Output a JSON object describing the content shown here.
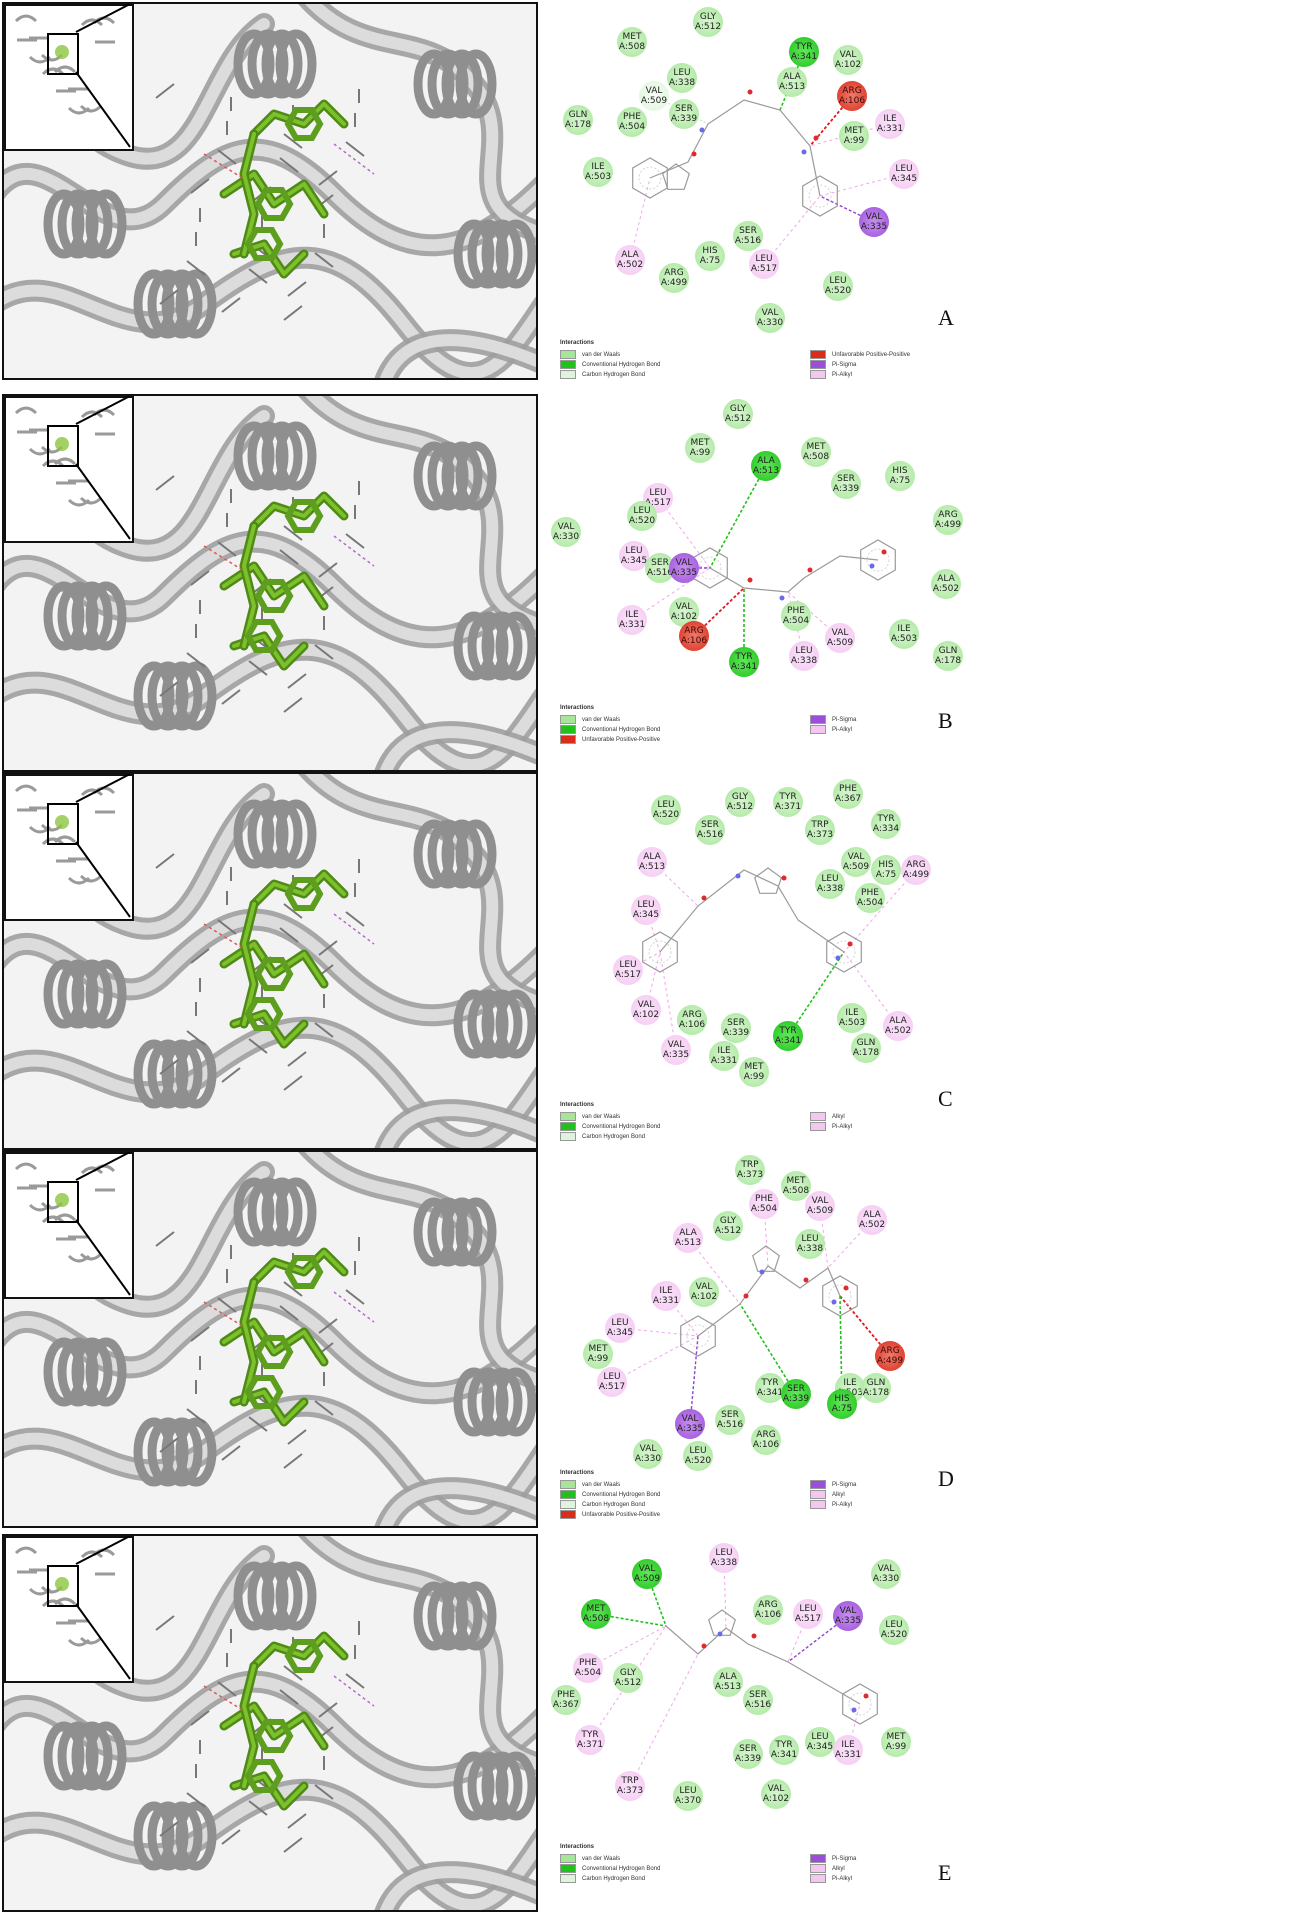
{
  "panels": [
    {
      "letter": "A",
      "legend_title": "Interactions",
      "legend_col1": [
        {
          "label": "van der Waals",
          "color": "#a7e69a"
        },
        {
          "label": "Conventional Hydrogen Bond",
          "color": "#1fc21a"
        },
        {
          "label": "Carbon Hydrogen Bond",
          "color": "#dff4dc"
        }
      ],
      "legend_col2": [
        {
          "label": "Unfavorable Positive-Positive",
          "color": "#d92c1a"
        },
        {
          "label": "Pi-Sigma",
          "color": "#9b4fd8"
        },
        {
          "label": "Pi-Alkyl",
          "color": "#f4c7f1"
        }
      ],
      "residues": [
        {
          "name": "MET",
          "id": "A:508",
          "type": "vdw"
        },
        {
          "name": "GLY",
          "id": "A:512",
          "type": "vdw"
        },
        {
          "name": "TYR",
          "id": "A:341",
          "type": "hb"
        },
        {
          "name": "VAL",
          "id": "A:102",
          "type": "vdw"
        },
        {
          "name": "LEU",
          "id": "A:338",
          "type": "vdw"
        },
        {
          "name": "ALA",
          "id": "A:513",
          "type": "vdw"
        },
        {
          "name": "ARG",
          "id": "A:106",
          "type": "unf"
        },
        {
          "name": "VAL",
          "id": "A:509",
          "type": "chb"
        },
        {
          "name": "GLN",
          "id": "A:178",
          "type": "vdw"
        },
        {
          "name": "PHE",
          "id": "A:504",
          "type": "vdw"
        },
        {
          "name": "SER",
          "id": "A:339",
          "type": "vdw"
        },
        {
          "name": "ILE",
          "id": "A:331",
          "type": "alk"
        },
        {
          "name": "MET",
          "id": "A:99",
          "type": "vdw"
        },
        {
          "name": "ILE",
          "id": "A:503",
          "type": "vdw"
        },
        {
          "name": "LEU",
          "id": "A:345",
          "type": "alk"
        },
        {
          "name": "VAL",
          "id": "A:335",
          "type": "sig"
        },
        {
          "name": "SER",
          "id": "A:516",
          "type": "vdw"
        },
        {
          "name": "HIS",
          "id": "A:75",
          "type": "vdw"
        },
        {
          "name": "ALA",
          "id": "A:502",
          "type": "alk"
        },
        {
          "name": "LEU",
          "id": "A:517",
          "type": "alk"
        },
        {
          "name": "ARG",
          "id": "A:499",
          "type": "vdw"
        },
        {
          "name": "LEU",
          "id": "A:520",
          "type": "vdw"
        },
        {
          "name": "VAL",
          "id": "A:330",
          "type": "vdw"
        }
      ]
    },
    {
      "letter": "B",
      "legend_title": "Interactions",
      "legend_col1": [
        {
          "label": "van der Waals",
          "color": "#a7e69a"
        },
        {
          "label": "Conventional Hydrogen Bond",
          "color": "#1fc21a"
        },
        {
          "label": "Unfavorable Positive-Positive",
          "color": "#d92c1a"
        }
      ],
      "legend_col2": [
        {
          "label": "Pi-Sigma",
          "color": "#9b4fd8"
        },
        {
          "label": "Pi-Alkyl",
          "color": "#f4c7f1"
        }
      ],
      "residues": [
        {
          "name": "GLY",
          "id": "A:512",
          "type": "vdw"
        },
        {
          "name": "MET",
          "id": "A:99",
          "type": "vdw"
        },
        {
          "name": "ALA",
          "id": "A:513",
          "type": "hb"
        },
        {
          "name": "MET",
          "id": "A:508",
          "type": "vdw"
        },
        {
          "name": "HIS",
          "id": "A:75",
          "type": "vdw"
        },
        {
          "name": "SER",
          "id": "A:339",
          "type": "vdw"
        },
        {
          "name": "LEU",
          "id": "A:517",
          "type": "alk"
        },
        {
          "name": "LEU",
          "id": "A:520",
          "type": "vdw"
        },
        {
          "name": "ARG",
          "id": "A:499",
          "type": "vdw"
        },
        {
          "name": "VAL",
          "id": "A:330",
          "type": "vdw"
        },
        {
          "name": "LEU",
          "id": "A:345",
          "type": "alk"
        },
        {
          "name": "SER",
          "id": "A:516",
          "type": "vdw"
        },
        {
          "name": "VAL",
          "id": "A:335",
          "type": "sig"
        },
        {
          "name": "ALA",
          "id": "A:502",
          "type": "vdw"
        },
        {
          "name": "VAL",
          "id": "A:102",
          "type": "vdw"
        },
        {
          "name": "ILE",
          "id": "A:331",
          "type": "alk"
        },
        {
          "name": "ARG",
          "id": "A:106",
          "type": "unf"
        },
        {
          "name": "PHE",
          "id": "A:504",
          "type": "vdw"
        },
        {
          "name": "VAL",
          "id": "A:509",
          "type": "alk"
        },
        {
          "name": "ILE",
          "id": "A:503",
          "type": "vdw"
        },
        {
          "name": "LEU",
          "id": "A:338",
          "type": "alk"
        },
        {
          "name": "GLN",
          "id": "A:178",
          "type": "vdw"
        },
        {
          "name": "TYR",
          "id": "A:341",
          "type": "hb"
        }
      ]
    },
    {
      "letter": "C",
      "legend_title": "Interactions",
      "legend_col1": [
        {
          "label": "van der Waals",
          "color": "#a7e69a"
        },
        {
          "label": "Conventional Hydrogen Bond",
          "color": "#1fc21a"
        },
        {
          "label": "Carbon Hydrogen Bond",
          "color": "#dff4dc"
        }
      ],
      "legend_col2": [
        {
          "label": "Alkyl",
          "color": "#f4c7f1"
        },
        {
          "label": "Pi-Alkyl",
          "color": "#f4c7f1"
        }
      ],
      "residues": [
        {
          "name": "PHE",
          "id": "A:367",
          "type": "vdw"
        },
        {
          "name": "GLY",
          "id": "A:512",
          "type": "vdw"
        },
        {
          "name": "TYR",
          "id": "A:371",
          "type": "vdw"
        },
        {
          "name": "LEU",
          "id": "A:520",
          "type": "vdw"
        },
        {
          "name": "TYR",
          "id": "A:334",
          "type": "vdw"
        },
        {
          "name": "SER",
          "id": "A:516",
          "type": "vdw"
        },
        {
          "name": "TRP",
          "id": "A:373",
          "type": "vdw"
        },
        {
          "name": "ALA",
          "id": "A:513",
          "type": "alk"
        },
        {
          "name": "VAL",
          "id": "A:509",
          "type": "vdw"
        },
        {
          "name": "HIS",
          "id": "A:75",
          "type": "vdw"
        },
        {
          "name": "ARG",
          "id": "A:499",
          "type": "alk"
        },
        {
          "name": "LEU",
          "id": "A:338",
          "type": "vdw"
        },
        {
          "name": "PHE",
          "id": "A:504",
          "type": "vdw"
        },
        {
          "name": "LEU",
          "id": "A:345",
          "type": "alk"
        },
        {
          "name": "LEU",
          "id": "A:517",
          "type": "alk"
        },
        {
          "name": "VAL",
          "id": "A:102",
          "type": "alk"
        },
        {
          "name": "ARG",
          "id": "A:106",
          "type": "vdw"
        },
        {
          "name": "SER",
          "id": "A:339",
          "type": "vdw"
        },
        {
          "name": "TYR",
          "id": "A:341",
          "type": "hb"
        },
        {
          "name": "ILE",
          "id": "A:503",
          "type": "vdw"
        },
        {
          "name": "ALA",
          "id": "A:502",
          "type": "alk"
        },
        {
          "name": "GLN",
          "id": "A:178",
          "type": "vdw"
        },
        {
          "name": "VAL",
          "id": "A:335",
          "type": "alk"
        },
        {
          "name": "ILE",
          "id": "A:331",
          "type": "vdw"
        },
        {
          "name": "MET",
          "id": "A:99",
          "type": "vdw"
        }
      ]
    },
    {
      "letter": "D",
      "legend_title": "Interactions",
      "legend_col1": [
        {
          "label": "van der Waals",
          "color": "#a7e69a"
        },
        {
          "label": "Conventional Hydrogen Bond",
          "color": "#1fc21a"
        },
        {
          "label": "Carbon Hydrogen Bond",
          "color": "#dff4dc"
        },
        {
          "label": "Unfavorable Positive-Positive",
          "color": "#d92c1a"
        }
      ],
      "legend_col2": [
        {
          "label": "Pi-Sigma",
          "color": "#9b4fd8"
        },
        {
          "label": "Alkyl",
          "color": "#f4c7f1"
        },
        {
          "label": "Pi-Alkyl",
          "color": "#f4c7f1"
        }
      ],
      "residues": [
        {
          "name": "TRP",
          "id": "A:373",
          "type": "vdw"
        },
        {
          "name": "MET",
          "id": "A:508",
          "type": "vdw"
        },
        {
          "name": "PHE",
          "id": "A:504",
          "type": "alk"
        },
        {
          "name": "VAL",
          "id": "A:509",
          "type": "alk"
        },
        {
          "name": "ALA",
          "id": "A:502",
          "type": "alk"
        },
        {
          "name": "GLY",
          "id": "A:512",
          "type": "vdw"
        },
        {
          "name": "ALA",
          "id": "A:513",
          "type": "alk"
        },
        {
          "name": "LEU",
          "id": "A:338",
          "type": "vdw"
        },
        {
          "name": "ILE",
          "id": "A:331",
          "type": "alk"
        },
        {
          "name": "VAL",
          "id": "A:102",
          "type": "vdw"
        },
        {
          "name": "LEU",
          "id": "A:345",
          "type": "alk"
        },
        {
          "name": "MET",
          "id": "A:99",
          "type": "vdw"
        },
        {
          "name": "ARG",
          "id": "A:499",
          "type": "unf"
        },
        {
          "name": "LEU",
          "id": "A:517",
          "type": "alk"
        },
        {
          "name": "TYR",
          "id": "A:341",
          "type": "vdw"
        },
        {
          "name": "SER",
          "id": "A:339",
          "type": "hb"
        },
        {
          "name": "ILE",
          "id": "A:503",
          "type": "vdw"
        },
        {
          "name": "GLN",
          "id": "A:178",
          "type": "vdw"
        },
        {
          "name": "HIS",
          "id": "A:75",
          "type": "hb"
        },
        {
          "name": "VAL",
          "id": "A:335",
          "type": "sig"
        },
        {
          "name": "SER",
          "id": "A:516",
          "type": "vdw"
        },
        {
          "name": "ARG",
          "id": "A:106",
          "type": "vdw"
        },
        {
          "name": "VAL",
          "id": "A:330",
          "type": "vdw"
        },
        {
          "name": "LEU",
          "id": "A:520",
          "type": "vdw"
        }
      ]
    },
    {
      "letter": "E",
      "legend_title": "Interactions",
      "legend_col1": [
        {
          "label": "van der Waals",
          "color": "#a7e69a"
        },
        {
          "label": "Conventional Hydrogen Bond",
          "color": "#1fc21a"
        },
        {
          "label": "Carbon Hydrogen Bond",
          "color": "#dff4dc"
        }
      ],
      "legend_col2": [
        {
          "label": "Pi-Sigma",
          "color": "#9b4fd8"
        },
        {
          "label": "Alkyl",
          "color": "#f4c7f1"
        },
        {
          "label": "Pi-Alkyl",
          "color": "#f4c7f1"
        }
      ],
      "residues": [
        {
          "name": "VAL",
          "id": "A:509",
          "type": "hb"
        },
        {
          "name": "LEU",
          "id": "A:338",
          "type": "alk"
        },
        {
          "name": "VAL",
          "id": "A:330",
          "type": "vdw"
        },
        {
          "name": "MET",
          "id": "A:508",
          "type": "hb"
        },
        {
          "name": "ARG",
          "id": "A:106",
          "type": "vdw"
        },
        {
          "name": "LEU",
          "id": "A:517",
          "type": "alk"
        },
        {
          "name": "VAL",
          "id": "A:335",
          "type": "sig"
        },
        {
          "name": "LEU",
          "id": "A:520",
          "type": "vdw"
        },
        {
          "name": "PHE",
          "id": "A:504",
          "type": "alk"
        },
        {
          "name": "GLY",
          "id": "A:512",
          "type": "vdw"
        },
        {
          "name": "ALA",
          "id": "A:513",
          "type": "vdw"
        },
        {
          "name": "PHE",
          "id": "A:367",
          "type": "vdw"
        },
        {
          "name": "SER",
          "id": "A:516",
          "type": "vdw"
        },
        {
          "name": "TYR",
          "id": "A:371",
          "type": "alk"
        },
        {
          "name": "SER",
          "id": "A:339",
          "type": "vdw"
        },
        {
          "name": "TYR",
          "id": "A:341",
          "type": "vdw"
        },
        {
          "name": "LEU",
          "id": "A:345",
          "type": "vdw"
        },
        {
          "name": "ILE",
          "id": "A:331",
          "type": "alk"
        },
        {
          "name": "MET",
          "id": "A:99",
          "type": "vdw"
        },
        {
          "name": "TRP",
          "id": "A:373",
          "type": "alk"
        },
        {
          "name": "LEU",
          "id": "A:370",
          "type": "vdw"
        },
        {
          "name": "VAL",
          "id": "A:102",
          "type": "vdw"
        }
      ]
    }
  ]
}
